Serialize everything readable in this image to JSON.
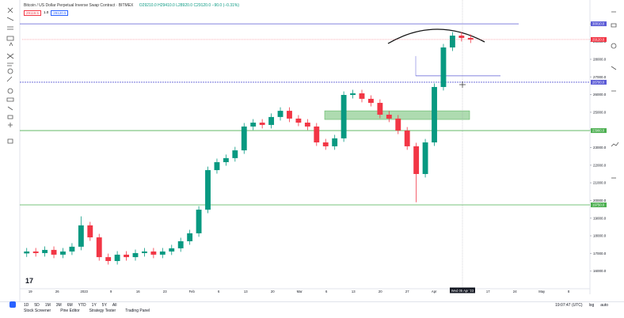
{
  "header": {
    "symbol": "Bitcoin / US Dollar Perpetual Inverse Swap Contract · BITMEX",
    "ohlc": "O29210.0 H29410.0 L28920.0 C29120.0 −90.0 (−0.31%)",
    "tag_sell": "29119.5",
    "tag_spread": "1.0",
    "tag_buy": "29120.5"
  },
  "chart_data": {
    "type": "candlestick",
    "open": [
      17000,
      17110,
      17020,
      17200,
      16930,
      17110,
      17380,
      18590,
      17910,
      16790,
      16570,
      16930,
      16790,
      17020,
      17110,
      16930,
      17110,
      17290,
      17690,
      18140,
      19480,
      21720,
      22170,
      22400,
      22840,
      24190,
      24410,
      24280,
      24730,
      25080,
      24640,
      24410,
      24190,
      23290,
      23070,
      23520,
      25980,
      26070,
      25760,
      25530,
      24860,
      24640,
      23960,
      23070,
      21500,
      23290,
      26430,
      28670,
      29340,
      29210
    ],
    "high": [
      17310,
      17310,
      17400,
      17400,
      17310,
      17580,
      19100,
      18790,
      18110,
      16990,
      17130,
      17130,
      17220,
      17310,
      17310,
      17310,
      17490,
      17890,
      18340,
      19680,
      21920,
      22370,
      22600,
      23040,
      24390,
      24610,
      24610,
      24930,
      25280,
      25280,
      24840,
      24610,
      24390,
      23490,
      23720,
      26180,
      26270,
      26270,
      25960,
      25730,
      25060,
      24840,
      24160,
      23270,
      23490,
      26630,
      28870,
      29540,
      29540,
      29410
    ],
    "low": [
      16800,
      16820,
      16820,
      16730,
      16730,
      16910,
      17180,
      17710,
      16590,
      16370,
      16370,
      16590,
      16590,
      16820,
      16730,
      16730,
      16910,
      17090,
      17490,
      17940,
      19280,
      21520,
      21970,
      22200,
      22640,
      23990,
      24080,
      24080,
      24530,
      24440,
      24210,
      23990,
      23090,
      22870,
      22870,
      23320,
      25780,
      25560,
      25330,
      24660,
      24440,
      23760,
      22870,
      19900,
      21300,
      23090,
      26230,
      28470,
      29010,
      28920
    ],
    "close": [
      17110,
      17020,
      17200,
      16930,
      17110,
      17380,
      18590,
      17910,
      16790,
      16570,
      16930,
      16790,
      17020,
      17110,
      16930,
      17110,
      17290,
      17690,
      18140,
      19480,
      21720,
      22170,
      22400,
      22840,
      24190,
      24410,
      24280,
      24730,
      25080,
      24640,
      24410,
      24190,
      23290,
      23070,
      23520,
      25980,
      26070,
      25760,
      25530,
      24860,
      24640,
      23960,
      23070,
      21500,
      23290,
      26430,
      28670,
      29340,
      29210,
      29120
    ],
    "up_color": "#089981",
    "down_color": "#f23645",
    "ylim": [
      15000,
      31000
    ],
    "yticks": [
      {
        "value": 16000,
        "label": "16000.0"
      },
      {
        "value": 17000,
        "label": "17000.0"
      },
      {
        "value": 18000,
        "label": "18000.0"
      },
      {
        "value": 19000,
        "label": "19000.0"
      },
      {
        "value": 20000,
        "label": "20000.0"
      },
      {
        "value": 21000,
        "label": "21000.0"
      },
      {
        "value": 22000,
        "label": "22000.0"
      },
      {
        "value": 23000,
        "label": "23000.0"
      },
      {
        "value": 24000,
        "label": "24000.0"
      },
      {
        "value": 25000,
        "label": "25000.0"
      },
      {
        "value": 26000,
        "label": "26000.0"
      },
      {
        "value": 27000,
        "label": "27000.0"
      },
      {
        "value": 28000,
        "label": "28000.0"
      },
      {
        "value": 29000,
        "label": "29000.0"
      },
      {
        "value": 30000,
        "label": "30000.0"
      }
    ],
    "last_label": "29120.0",
    "levels": [
      {
        "value": 30010,
        "color": "#5b5bd6",
        "label": "30010.0"
      },
      {
        "value": 26700,
        "color": "#5b5bd6",
        "label": "26700.0"
      },
      {
        "value": 23960,
        "color": "#4caf50",
        "label": "23960.0"
      },
      {
        "value": 19750,
        "color": "#4caf50",
        "label": "19750.0"
      }
    ],
    "short_level": 27060,
    "zone": [
      24590,
      25080
    ],
    "xlabels": [
      "19",
      "26",
      "2023",
      "9",
      "16",
      "23",
      "Feb",
      "6",
      "13",
      "20",
      "Mar",
      "6",
      "13",
      "20",
      "27",
      "Apr",
      "10",
      "17",
      "24",
      "May",
      "8"
    ],
    "cursor_date": "Wed 05 Apr '23"
  },
  "footer": {
    "timeframes": [
      "1D",
      "5D",
      "1M",
      "3M",
      "6M",
      "YTD",
      "1Y",
      "5Y",
      "All"
    ],
    "tabs": [
      "Stock Screener",
      "Pine Editor",
      "Strategy Tester",
      "Trading Panel"
    ],
    "clock": "19:07:47 (UTC)",
    "log": "log",
    "auto": "auto"
  }
}
